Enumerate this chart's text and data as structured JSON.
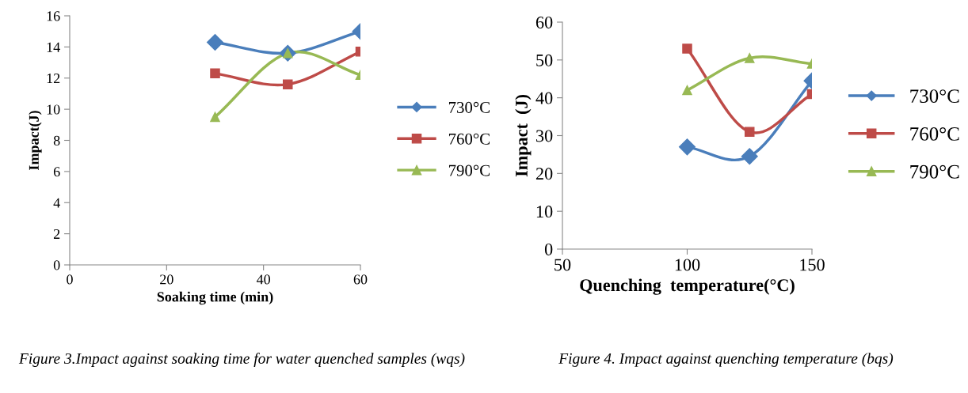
{
  "chart_data": [
    {
      "type": "line",
      "xlabel": "Soaking time (min)",
      "ylabel": "Impact(J)",
      "x": [
        30,
        45,
        60
      ],
      "xlim": [
        0,
        60
      ],
      "xticks": [
        0,
        20,
        40,
        60
      ],
      "ylim": [
        0,
        16
      ],
      "yticks": [
        0,
        2,
        4,
        6,
        8,
        10,
        12,
        14,
        16
      ],
      "grid": false,
      "legend": "right",
      "line_style": "solid",
      "series": [
        {
          "name": "730°C",
          "color": "#4a7ebb",
          "marker": "diamond",
          "values": [
            14.3,
            13.6,
            15.0
          ]
        },
        {
          "name": "760°C",
          "color": "#be4b48",
          "marker": "square",
          "values": [
            12.3,
            11.6,
            13.7
          ]
        },
        {
          "name": "790°C",
          "color": "#98b954",
          "marker": "triangle",
          "values": [
            9.5,
            13.6,
            12.2
          ]
        }
      ],
      "annotations": [
        "Figure 3.Impact against soaking time for water quenched samples (wqs)"
      ]
    },
    {
      "type": "line",
      "xlabel": "Quenching  temperature(°C)",
      "ylabel": "Impact  (J)",
      "x": [
        100,
        125,
        150
      ],
      "xlim": [
        50,
        150
      ],
      "xticks": [
        50,
        100,
        150
      ],
      "ylim": [
        0,
        60
      ],
      "yticks": [
        0,
        10,
        20,
        30,
        40,
        50,
        60
      ],
      "grid": false,
      "legend": "right",
      "line_style": "solid",
      "series": [
        {
          "name": "730°C",
          "color": "#4a7ebb",
          "marker": "diamond",
          "values": [
            27,
            24.5,
            44.5
          ]
        },
        {
          "name": "760°C",
          "color": "#be4b48",
          "marker": "square",
          "values": [
            53,
            31,
            41
          ]
        },
        {
          "name": "790°C",
          "color": "#98b954",
          "marker": "triangle",
          "values": [
            42,
            50.5,
            49
          ]
        }
      ],
      "annotations": [
        "Figure 4. Impact against quenching temperature (bqs)"
      ]
    }
  ]
}
